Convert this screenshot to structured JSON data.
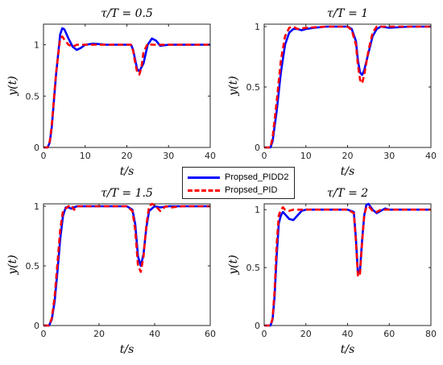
{
  "colors": {
    "pidd2": "#0000FF",
    "pid": "#FF0000",
    "axis": "#262626"
  },
  "legend": {
    "placement": "center",
    "entries": [
      "Propsed_PIDD2",
      "Propsed_PID"
    ]
  },
  "chart_data": [
    {
      "type": "line",
      "title": "τ/T = 0.5",
      "xlabel": "t/s",
      "ylabel": "y(t)",
      "xlim": [
        0,
        40
      ],
      "ylim": [
        0,
        1.2
      ],
      "xticks": [
        0,
        10,
        20,
        30,
        40
      ],
      "yticks": [
        0,
        0.5,
        1
      ],
      "ytick_labels": [
        "0",
        "0.5",
        "1"
      ],
      "series": [
        {
          "name": "Propsed_PIDD2",
          "style": "solid",
          "x": [
            0,
            1,
            1.5,
            2,
            3,
            4,
            4.5,
            5,
            6,
            7,
            8,
            9,
            10,
            12,
            15,
            20,
            21,
            21.5,
            22,
            22.5,
            23,
            24,
            25,
            26,
            27,
            28,
            30,
            35,
            40
          ],
          "y": [
            0,
            0,
            0.05,
            0.2,
            0.7,
            1.1,
            1.16,
            1.15,
            1.06,
            0.98,
            0.95,
            0.97,
            1.0,
            1.01,
            1.0,
            1.0,
            1.0,
            0.95,
            0.85,
            0.76,
            0.74,
            0.82,
            1.0,
            1.06,
            1.04,
            0.99,
            1.0,
            1.0,
            1.0
          ]
        },
        {
          "name": "Propsed_PID",
          "style": "dashed",
          "x": [
            0,
            1,
            1.5,
            2,
            3,
            4,
            4.5,
            5,
            6,
            7,
            8,
            10,
            15,
            20,
            21,
            21.5,
            22,
            22.5,
            23,
            23.5,
            24,
            25,
            26,
            30,
            35,
            40
          ],
          "y": [
            0,
            0,
            0.06,
            0.22,
            0.72,
            1.06,
            1.08,
            1.05,
            1.0,
            0.98,
            1.0,
            1.0,
            1.0,
            1.0,
            1.0,
            0.94,
            0.82,
            0.73,
            0.71,
            0.78,
            0.93,
            1.01,
            1.0,
            1.0,
            1.0,
            1.0
          ]
        }
      ]
    },
    {
      "type": "line",
      "title": "τ/T = 1",
      "xlabel": "t/s",
      "ylabel": "y(t)",
      "xlim": [
        0,
        40
      ],
      "ylim": [
        0,
        1.02
      ],
      "xticks": [
        0,
        10,
        20,
        30,
        40
      ],
      "yticks": [
        0,
        0.5,
        1
      ],
      "ytick_labels": [
        "0",
        "0.5",
        "1"
      ],
      "series": [
        {
          "name": "Propsed_PIDD2",
          "style": "solid",
          "x": [
            0,
            1.5,
            2,
            3,
            4,
            5,
            6,
            7,
            8,
            9,
            10,
            12,
            15,
            20,
            21,
            22,
            22.5,
            23,
            23.5,
            24,
            25,
            26,
            27,
            28,
            30,
            35,
            40
          ],
          "y": [
            0,
            0,
            0.05,
            0.3,
            0.62,
            0.85,
            0.95,
            0.98,
            0.98,
            0.97,
            0.98,
            0.99,
            1.0,
            1.0,
            0.98,
            0.88,
            0.72,
            0.62,
            0.6,
            0.64,
            0.78,
            0.92,
            0.98,
            1.0,
            0.99,
            1.0,
            1.0
          ]
        },
        {
          "name": "Propsed_PID",
          "style": "dashed",
          "x": [
            0,
            1.5,
            2,
            3,
            4,
            5,
            6,
            7,
            8,
            10,
            15,
            20,
            21,
            22,
            22.5,
            23,
            23.5,
            24,
            25,
            26,
            27,
            28,
            30,
            35,
            40
          ],
          "y": [
            0,
            0,
            0.08,
            0.38,
            0.72,
            0.92,
            0.99,
            1.0,
            0.98,
            0.99,
            1.0,
            1.0,
            0.97,
            0.85,
            0.68,
            0.56,
            0.53,
            0.6,
            0.8,
            0.95,
            1.0,
            1.0,
            1.0,
            1.0,
            1.0
          ]
        }
      ]
    },
    {
      "type": "line",
      "title": "τ/T = 1.5",
      "xlabel": "t/s",
      "ylabel": "y(t)",
      "xlim": [
        0,
        60
      ],
      "ylim": [
        0,
        1.02
      ],
      "xticks": [
        0,
        20,
        40,
        60
      ],
      "yticks": [
        0,
        0.5,
        1
      ],
      "ytick_labels": [
        "0",
        "0.5",
        "1"
      ],
      "series": [
        {
          "name": "Propsed_PIDD2",
          "style": "solid",
          "x": [
            0,
            2,
            3,
            4,
            5,
            6,
            7,
            8,
            9,
            10,
            12,
            15,
            20,
            30,
            32,
            33,
            34,
            35,
            36,
            37,
            38,
            40,
            42,
            45,
            50,
            60
          ],
          "y": [
            0,
            0,
            0.05,
            0.2,
            0.45,
            0.72,
            0.92,
            0.99,
            0.99,
            0.98,
            1.0,
            1.0,
            1.0,
            1.0,
            0.97,
            0.85,
            0.58,
            0.5,
            0.6,
            0.82,
            0.96,
            1.0,
            0.99,
            1.0,
            1.0,
            1.0
          ]
        },
        {
          "name": "Propsed_PID",
          "style": "dashed",
          "x": [
            0,
            2,
            3,
            4,
            5,
            6,
            7,
            8,
            9,
            10,
            11,
            12,
            15,
            20,
            30,
            32,
            33,
            34,
            35,
            36,
            37,
            38,
            39,
            40,
            42,
            44,
            46,
            50,
            60
          ],
          "y": [
            0,
            0,
            0.06,
            0.24,
            0.52,
            0.8,
            0.96,
            0.98,
            1.0,
            1.01,
            0.97,
            1.0,
            1.0,
            1.0,
            1.0,
            0.96,
            0.8,
            0.5,
            0.45,
            0.58,
            0.84,
            1.0,
            1.02,
            1.01,
            0.96,
            1.0,
            0.99,
            1.0,
            1.0
          ]
        }
      ]
    },
    {
      "type": "line",
      "title": "τ/T = 2",
      "xlabel": "t/s",
      "ylabel": "y(t)",
      "xlim": [
        0,
        80
      ],
      "ylim": [
        0,
        1.05
      ],
      "xticks": [
        0,
        20,
        40,
        60,
        80
      ],
      "yticks": [
        0,
        0.5,
        1
      ],
      "ytick_labels": [
        "0",
        "0.5",
        "1"
      ],
      "series": [
        {
          "name": "Propsed_PIDD2",
          "style": "solid",
          "x": [
            0,
            3,
            4,
            5,
            6,
            7,
            8,
            9,
            10,
            12,
            14,
            16,
            18,
            20,
            25,
            30,
            40,
            43,
            44,
            45,
            46,
            47,
            48,
            49,
            50,
            52,
            54,
            56,
            58,
            60,
            65,
            70,
            80
          ],
          "y": [
            0,
            0,
            0.05,
            0.25,
            0.6,
            0.88,
            0.95,
            0.98,
            0.96,
            0.92,
            0.91,
            0.95,
            0.99,
            1.0,
            1.0,
            1.0,
            1.0,
            0.98,
            0.75,
            0.45,
            0.48,
            0.74,
            0.95,
            1.04,
            1.05,
            1.0,
            0.97,
            0.99,
            1.01,
            1.0,
            1.0,
            1.0,
            1.0
          ]
        },
        {
          "name": "Propsed_PID",
          "style": "dashed",
          "x": [
            0,
            3,
            4,
            5,
            6,
            7,
            8,
            9,
            10,
            12,
            14,
            16,
            20,
            30,
            40,
            43,
            44,
            45,
            46,
            47,
            48,
            49,
            50,
            52,
            54,
            56,
            60,
            70,
            80
          ],
          "y": [
            0,
            0,
            0.06,
            0.3,
            0.7,
            0.95,
            1.0,
            1.02,
            1.0,
            0.99,
            1.0,
            1.0,
            1.0,
            1.0,
            1.0,
            0.97,
            0.72,
            0.42,
            0.45,
            0.72,
            0.95,
            1.02,
            1.03,
            0.99,
            0.98,
            1.0,
            1.0,
            1.0,
            1.0
          ]
        }
      ]
    }
  ]
}
